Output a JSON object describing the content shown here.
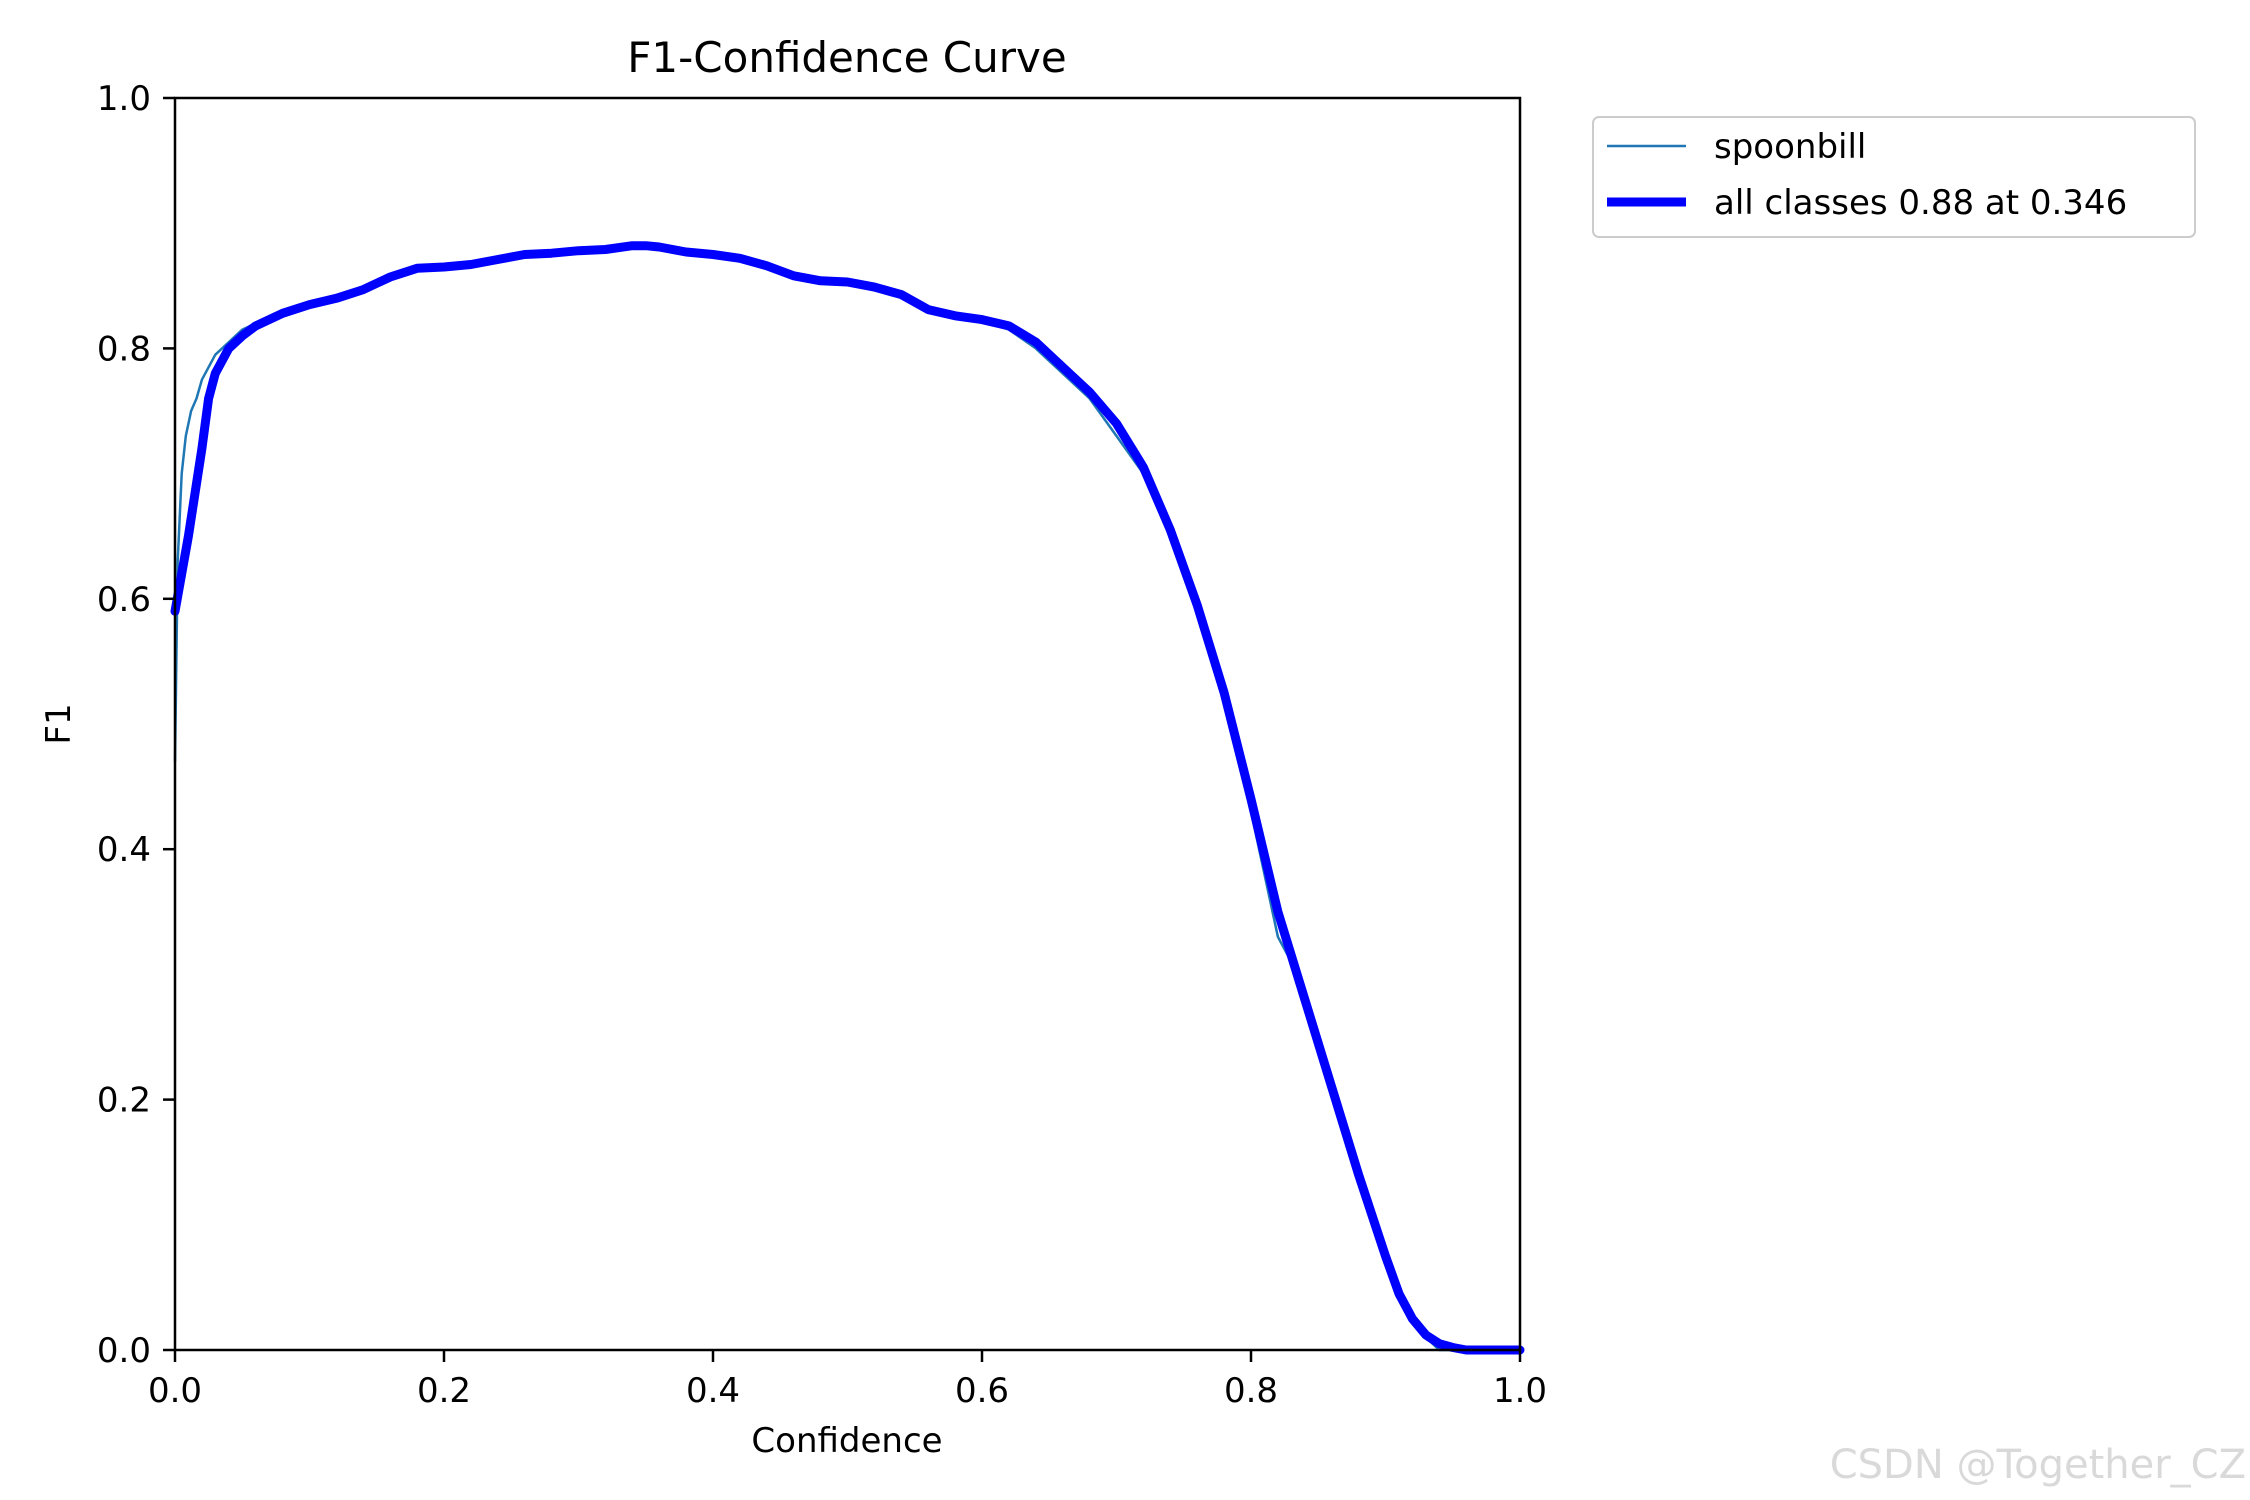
{
  "watermark": "CSDN @Together_CZ",
  "chart_data": {
    "type": "line",
    "title": "F1-Confidence Curve",
    "xlabel": "Confidence",
    "ylabel": "F1",
    "xlim": [
      0.0,
      1.0
    ],
    "ylim": [
      0.0,
      1.0
    ],
    "xticks": [
      "0.0",
      "0.2",
      "0.4",
      "0.6",
      "0.8",
      "1.0"
    ],
    "yticks": [
      "0.0",
      "0.2",
      "0.4",
      "0.6",
      "0.8",
      "1.0"
    ],
    "grid": false,
    "legend_position": "outside top-right",
    "series": [
      {
        "name": "spoonbill",
        "color": "#1f77b4",
        "style": "thin",
        "x": [
          0.0,
          0.002,
          0.005,
          0.008,
          0.012,
          0.016,
          0.02,
          0.025,
          0.03,
          0.035,
          0.04,
          0.05,
          0.06,
          0.08,
          0.1,
          0.12,
          0.14,
          0.16,
          0.18,
          0.2,
          0.22,
          0.24,
          0.26,
          0.28,
          0.3,
          0.32,
          0.34,
          0.35,
          0.36,
          0.38,
          0.4,
          0.42,
          0.44,
          0.46,
          0.48,
          0.5,
          0.52,
          0.54,
          0.56,
          0.58,
          0.6,
          0.62,
          0.64,
          0.66,
          0.68,
          0.7,
          0.72,
          0.74,
          0.76,
          0.78,
          0.8,
          0.82,
          0.83,
          0.84,
          0.86,
          0.88,
          0.9,
          0.91,
          0.92,
          0.93,
          0.94,
          0.95,
          0.96,
          0.97,
          0.98,
          1.0
        ],
        "y": [
          0.47,
          0.63,
          0.7,
          0.73,
          0.75,
          0.76,
          0.775,
          0.785,
          0.795,
          0.8,
          0.805,
          0.815,
          0.82,
          0.83,
          0.835,
          0.84,
          0.845,
          0.855,
          0.865,
          0.865,
          0.867,
          0.872,
          0.875,
          0.876,
          0.877,
          0.879,
          0.882,
          0.883,
          0.881,
          0.877,
          0.875,
          0.873,
          0.866,
          0.858,
          0.855,
          0.853,
          0.85,
          0.843,
          0.83,
          0.825,
          0.822,
          0.815,
          0.8,
          0.78,
          0.76,
          0.73,
          0.7,
          0.65,
          0.59,
          0.52,
          0.43,
          0.33,
          0.31,
          0.28,
          0.21,
          0.14,
          0.08,
          0.05,
          0.03,
          0.01,
          0.0,
          0.0,
          0.0,
          0.0,
          0.0,
          0.0
        ]
      },
      {
        "name": "all classes 0.88 at 0.346",
        "color": "#0000ff",
        "style": "thick",
        "x": [
          0.0,
          0.01,
          0.02,
          0.025,
          0.03,
          0.04,
          0.05,
          0.06,
          0.08,
          0.1,
          0.12,
          0.14,
          0.16,
          0.18,
          0.2,
          0.22,
          0.24,
          0.26,
          0.28,
          0.3,
          0.32,
          0.34,
          0.35,
          0.36,
          0.38,
          0.4,
          0.42,
          0.44,
          0.46,
          0.48,
          0.5,
          0.52,
          0.54,
          0.56,
          0.58,
          0.6,
          0.62,
          0.64,
          0.66,
          0.68,
          0.7,
          0.72,
          0.74,
          0.76,
          0.78,
          0.8,
          0.82,
          0.84,
          0.86,
          0.88,
          0.9,
          0.91,
          0.92,
          0.93,
          0.94,
          0.95,
          0.96,
          0.97,
          0.98,
          1.0
        ],
        "y": [
          0.59,
          0.65,
          0.72,
          0.76,
          0.78,
          0.8,
          0.81,
          0.818,
          0.828,
          0.835,
          0.84,
          0.847,
          0.857,
          0.864,
          0.865,
          0.867,
          0.871,
          0.875,
          0.876,
          0.878,
          0.879,
          0.882,
          0.882,
          0.881,
          0.877,
          0.875,
          0.872,
          0.866,
          0.858,
          0.854,
          0.853,
          0.849,
          0.843,
          0.831,
          0.826,
          0.823,
          0.818,
          0.805,
          0.785,
          0.765,
          0.74,
          0.705,
          0.655,
          0.595,
          0.525,
          0.44,
          0.35,
          0.28,
          0.21,
          0.14,
          0.075,
          0.045,
          0.025,
          0.012,
          0.005,
          0.002,
          0.0,
          0.0,
          0.0,
          0.0
        ]
      }
    ]
  }
}
